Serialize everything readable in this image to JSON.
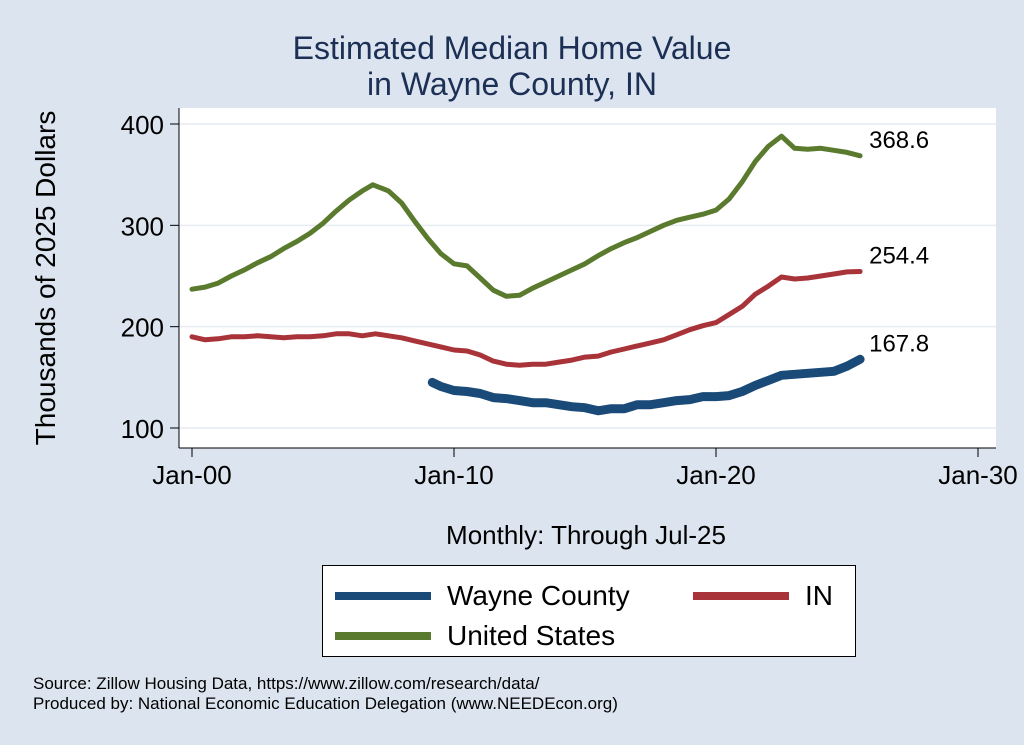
{
  "chart_data": {
    "type": "line",
    "title": "Estimated Median Home Value",
    "subtitle": "in Wayne County, IN",
    "xlabel": "Monthly: Through Jul-25",
    "ylabel": "Thousands of 2025 Dollars",
    "x_ticks": [
      "Jan-00",
      "Jan-10",
      "Jan-20",
      "Jan-30"
    ],
    "x_tick_years": [
      2000,
      2010,
      2020,
      2030
    ],
    "y_ticks": [
      100,
      200,
      300,
      400
    ],
    "xlim": [
      2000,
      2030
    ],
    "ylim": [
      100,
      400
    ],
    "grid": true,
    "legend_position": "bottom",
    "series": [
      {
        "name": "Wayne County",
        "color": "#1a4a78",
        "end_label": "167.8",
        "points": [
          [
            2009.17,
            145
          ],
          [
            2009.5,
            141
          ],
          [
            2010.0,
            137
          ],
          [
            2010.5,
            136
          ],
          [
            2011.0,
            134
          ],
          [
            2011.5,
            130
          ],
          [
            2012.0,
            129
          ],
          [
            2012.5,
            127
          ],
          [
            2013.0,
            125
          ],
          [
            2013.5,
            125
          ],
          [
            2014.0,
            123
          ],
          [
            2014.5,
            121
          ],
          [
            2015.0,
            120
          ],
          [
            2015.5,
            117
          ],
          [
            2016.0,
            119
          ],
          [
            2016.5,
            119
          ],
          [
            2017.0,
            123
          ],
          [
            2017.5,
            123
          ],
          [
            2018.0,
            125
          ],
          [
            2018.5,
            127
          ],
          [
            2019.0,
            128
          ],
          [
            2019.5,
            131
          ],
          [
            2020.0,
            131
          ],
          [
            2020.5,
            132
          ],
          [
            2021.0,
            136
          ],
          [
            2021.5,
            142
          ],
          [
            2022.0,
            147
          ],
          [
            2022.5,
            152
          ],
          [
            2023.0,
            153
          ],
          [
            2023.5,
            154
          ],
          [
            2024.0,
            155
          ],
          [
            2024.5,
            156
          ],
          [
            2025.0,
            161
          ],
          [
            2025.5,
            167.8
          ]
        ]
      },
      {
        "name": "IN",
        "color": "#a83338",
        "end_label": "254.4",
        "points": [
          [
            2000.0,
            190
          ],
          [
            2000.5,
            187
          ],
          [
            2001.0,
            188
          ],
          [
            2001.5,
            190
          ],
          [
            2002.0,
            190
          ],
          [
            2002.5,
            191
          ],
          [
            2003.0,
            190
          ],
          [
            2003.5,
            189
          ],
          [
            2004.0,
            190
          ],
          [
            2004.5,
            190
          ],
          [
            2005.0,
            191
          ],
          [
            2005.5,
            193
          ],
          [
            2006.0,
            193
          ],
          [
            2006.5,
            191
          ],
          [
            2007.0,
            193
          ],
          [
            2007.5,
            191
          ],
          [
            2008.0,
            189
          ],
          [
            2008.5,
            186
          ],
          [
            2009.0,
            183
          ],
          [
            2009.5,
            180
          ],
          [
            2010.0,
            177
          ],
          [
            2010.5,
            176
          ],
          [
            2011.0,
            172
          ],
          [
            2011.5,
            166
          ],
          [
            2012.0,
            163
          ],
          [
            2012.5,
            162
          ],
          [
            2013.0,
            163
          ],
          [
            2013.5,
            163
          ],
          [
            2014.0,
            165
          ],
          [
            2014.5,
            167
          ],
          [
            2015.0,
            170
          ],
          [
            2015.5,
            171
          ],
          [
            2016.0,
            175
          ],
          [
            2016.5,
            178
          ],
          [
            2017.0,
            181
          ],
          [
            2017.5,
            184
          ],
          [
            2018.0,
            187
          ],
          [
            2018.5,
            192
          ],
          [
            2019.0,
            197
          ],
          [
            2019.5,
            201
          ],
          [
            2020.0,
            204
          ],
          [
            2020.5,
            212
          ],
          [
            2021.0,
            220
          ],
          [
            2021.5,
            232
          ],
          [
            2022.0,
            240
          ],
          [
            2022.5,
            249
          ],
          [
            2023.0,
            247
          ],
          [
            2023.5,
            248
          ],
          [
            2024.0,
            250
          ],
          [
            2024.5,
            252
          ],
          [
            2025.0,
            254
          ],
          [
            2025.5,
            254.4
          ]
        ]
      },
      {
        "name": "United States",
        "color": "#5a7a2e",
        "end_label": "368.6",
        "points": [
          [
            2000.0,
            237
          ],
          [
            2000.5,
            239
          ],
          [
            2001.0,
            243
          ],
          [
            2001.5,
            250
          ],
          [
            2002.0,
            256
          ],
          [
            2002.5,
            263
          ],
          [
            2003.0,
            269
          ],
          [
            2003.5,
            277
          ],
          [
            2004.0,
            284
          ],
          [
            2004.5,
            292
          ],
          [
            2005.0,
            302
          ],
          [
            2005.5,
            314
          ],
          [
            2006.0,
            325
          ],
          [
            2006.5,
            334
          ],
          [
            2006.9,
            340
          ],
          [
            2007.5,
            334
          ],
          [
            2008.0,
            322
          ],
          [
            2008.5,
            304
          ],
          [
            2009.0,
            287
          ],
          [
            2009.5,
            272
          ],
          [
            2010.0,
            262
          ],
          [
            2010.5,
            260
          ],
          [
            2011.0,
            248
          ],
          [
            2011.5,
            236
          ],
          [
            2012.0,
            230
          ],
          [
            2012.5,
            231
          ],
          [
            2013.0,
            238
          ],
          [
            2013.5,
            244
          ],
          [
            2014.0,
            250
          ],
          [
            2014.5,
            256
          ],
          [
            2015.0,
            262
          ],
          [
            2015.5,
            270
          ],
          [
            2016.0,
            277
          ],
          [
            2016.5,
            283
          ],
          [
            2017.0,
            288
          ],
          [
            2017.5,
            294
          ],
          [
            2018.0,
            300
          ],
          [
            2018.5,
            305
          ],
          [
            2019.0,
            308
          ],
          [
            2019.5,
            311
          ],
          [
            2020.0,
            315
          ],
          [
            2020.5,
            326
          ],
          [
            2021.0,
            343
          ],
          [
            2021.5,
            363
          ],
          [
            2022.0,
            378
          ],
          [
            2022.5,
            388
          ],
          [
            2023.0,
            376
          ],
          [
            2023.5,
            375
          ],
          [
            2024.0,
            376
          ],
          [
            2024.5,
            374
          ],
          [
            2025.0,
            372
          ],
          [
            2025.5,
            368.6
          ]
        ]
      }
    ]
  },
  "source_line_1": "Source: Zillow Housing Data, https://www.zillow.com/research/data/",
  "source_line_2": "Produced by: National Economic Education Delegation (www.NEEDEcon.org)"
}
